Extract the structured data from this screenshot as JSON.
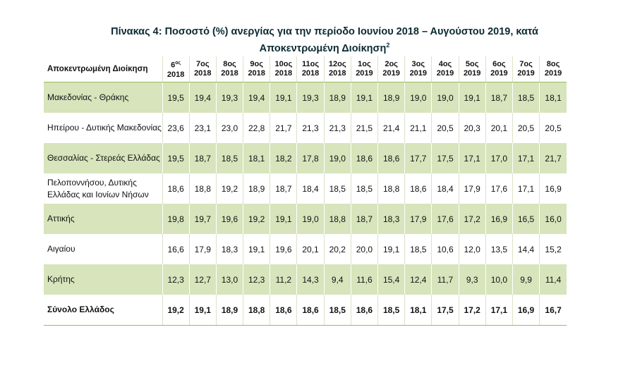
{
  "title": {
    "line1": "Πίνακας 4: Ποσοστό (%) ανεργίας για την περίοδο Ιουνίου 2018 – Αυγούστου 2019, κατά",
    "line2": "Αποκεντρωμένη Διοίκηση",
    "footnote": "2"
  },
  "table": {
    "row_header": "Αποκεντρωμένη Διοίκηση",
    "columns": [
      {
        "month": "6",
        "suffix": "ος",
        "year": "2018"
      },
      {
        "month": "7ος",
        "year": "2018"
      },
      {
        "month": "8ος",
        "year": "2018"
      },
      {
        "month": "9ος",
        "year": "2018"
      },
      {
        "month": "10ος",
        "year": "2018"
      },
      {
        "month": "11ος",
        "year": "2018"
      },
      {
        "month": "12ος",
        "year": "2018"
      },
      {
        "month": "1ος",
        "year": "2019"
      },
      {
        "month": "2ος",
        "year": "2019"
      },
      {
        "month": "3ος",
        "year": "2019"
      },
      {
        "month": "4ος",
        "year": "2019"
      },
      {
        "month": "5ος",
        "year": "2019"
      },
      {
        "month": "6ος",
        "year": "2019"
      },
      {
        "month": "7ος",
        "year": "2019"
      },
      {
        "month": "8ος",
        "year": "2019"
      }
    ],
    "rows": [
      {
        "label": "Μακεδονίας - Θράκης",
        "values": [
          "19,5",
          "19,4",
          "19,3",
          "19,4",
          "19,1",
          "19,3",
          "18,9",
          "19,1",
          "18,9",
          "19,0",
          "19,0",
          "19,1",
          "18,7",
          "18,5",
          "18,1"
        ]
      },
      {
        "label": "Ηπείρου - Δυτικής Μακεδονίας",
        "values": [
          "23,6",
          "23,1",
          "23,0",
          "22,8",
          "21,7",
          "21,3",
          "21,3",
          "21,5",
          "21,4",
          "21,1",
          "20,5",
          "20,3",
          "20,1",
          "20,5",
          "20,5"
        ]
      },
      {
        "label": "Θεσσαλίας - Στερεάς Ελλάδας",
        "values": [
          "19,5",
          "18,7",
          "18,5",
          "18,1",
          "18,2",
          "17,8",
          "19,0",
          "18,6",
          "18,6",
          "17,7",
          "17,5",
          "17,1",
          "17,0",
          "17,1",
          "21,7"
        ]
      },
      {
        "label": "Πελοποννήσου, Δυτικής Ελλάδας και Ιονίων Νήσων",
        "values": [
          "18,6",
          "18,8",
          "19,2",
          "18,9",
          "18,7",
          "18,4",
          "18,5",
          "18,5",
          "18,8",
          "18,6",
          "18,4",
          "17,9",
          "17,6",
          "17,1",
          "16,9"
        ]
      },
      {
        "label": "Αττικής",
        "values": [
          "19,8",
          "19,7",
          "19,6",
          "19,2",
          "19,1",
          "19,0",
          "18,8",
          "18,7",
          "18,3",
          "17,9",
          "17,6",
          "17,2",
          "16,9",
          "16,5",
          "16,0"
        ]
      },
      {
        "label": "Αιγαίου",
        "values": [
          "16,6",
          "17,9",
          "18,3",
          "19,1",
          "19,6",
          "20,1",
          "20,2",
          "20,0",
          "19,1",
          "18,5",
          "10,6",
          "12,0",
          "13,5",
          "14,4",
          "15,2"
        ]
      },
      {
        "label": "Κρήτης",
        "values": [
          "12,3",
          "12,7",
          "13,0",
          "12,3",
          "11,2",
          "14,3",
          "9,4",
          "11,6",
          "15,4",
          "12,4",
          "11,7",
          "9,3",
          "10,0",
          "9,9",
          "11,4"
        ]
      }
    ],
    "total": {
      "label": "Σύνολο Ελλάδος",
      "values": [
        "19,2",
        "19,1",
        "18,9",
        "18,8",
        "18,6",
        "18,6",
        "18,5",
        "18,6",
        "18,5",
        "18,1",
        "17,5",
        "17,2",
        "17,1",
        "16,9",
        "16,7"
      ]
    }
  },
  "colors": {
    "shade": "#d7e4bc",
    "rule": "#9bbb59"
  }
}
